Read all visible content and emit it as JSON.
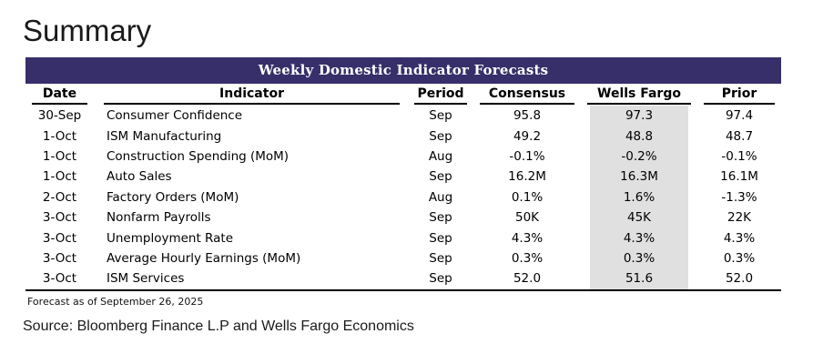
{
  "page": {
    "title": "Summary"
  },
  "table": {
    "title": "Weekly Domestic Indicator Forecasts",
    "columns": [
      "Date",
      "Indicator",
      "Period",
      "Consensus",
      "Wells Fargo",
      "Prior"
    ],
    "rows": [
      [
        "30-Sep",
        "Consumer Confidence",
        "Sep",
        "95.8",
        "97.3",
        "97.4"
      ],
      [
        "1-Oct",
        "ISM Manufacturing",
        "Sep",
        "49.2",
        "48.8",
        "48.7"
      ],
      [
        "1-Oct",
        "Construction Spending (MoM)",
        "Aug",
        "-0.1%",
        "-0.2%",
        "-0.1%"
      ],
      [
        "1-Oct",
        "Auto Sales",
        "Sep",
        "16.2M",
        "16.3M",
        "16.1M"
      ],
      [
        "2-Oct",
        "Factory Orders (MoM)",
        "Aug",
        "0.1%",
        "1.6%",
        "-1.3%"
      ],
      [
        "3-Oct",
        "Nonfarm Payrolls",
        "Sep",
        "50K",
        "45K",
        "22K"
      ],
      [
        "3-Oct",
        "Unemployment Rate",
        "Sep",
        "4.3%",
        "4.3%",
        "4.3%"
      ],
      [
        "3-Oct",
        "Average Hourly Earnings (MoM)",
        "Sep",
        "0.3%",
        "0.3%",
        "0.3%"
      ],
      [
        "3-Oct",
        "ISM Services",
        "Sep",
        "52.0",
        "51.6",
        "52.0"
      ]
    ],
    "footnote": "Forecast as of September 26, 2025"
  },
  "source_line": "Source: Bloomberg Finance L.P and Wells Fargo Economics",
  "colors": {
    "title_bar_bg": "#372F6A",
    "title_bar_text": "#FFFFFF",
    "wells_fargo_highlight": "#E0E0E0",
    "text": "#000000",
    "rule": "#000000"
  }
}
